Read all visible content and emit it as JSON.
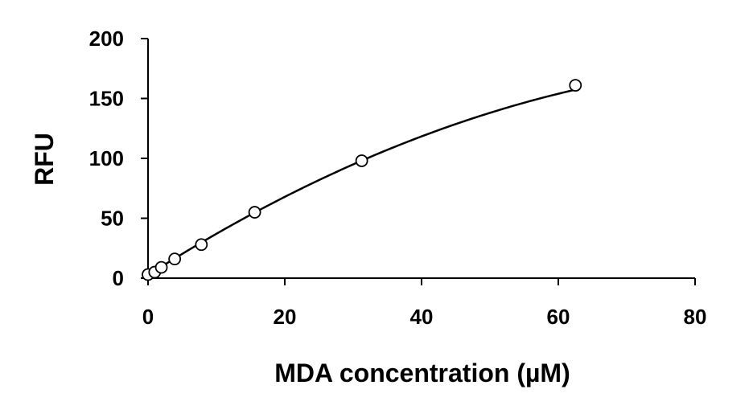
{
  "chart_data": {
    "type": "scatter",
    "title": "",
    "xlabel": "MDA concentration (µM)",
    "ylabel": "RFU",
    "xlim": [
      0,
      80
    ],
    "ylim": [
      0,
      200
    ],
    "xticks": [
      "0",
      "20",
      "40",
      "60",
      "80"
    ],
    "yticks": [
      "0",
      "50",
      "100",
      "150",
      "200"
    ],
    "grid": false,
    "legend": "none",
    "colors": {
      "axis": "#000000",
      "marker": "#000000",
      "fit": "#000000"
    },
    "series": [
      {
        "marker": "open-circle",
        "points": [
          {
            "x": 0,
            "y": 3
          },
          {
            "x": 0.98,
            "y": 5
          },
          {
            "x": 1.95,
            "y": 9
          },
          {
            "x": 3.9,
            "y": 16
          },
          {
            "x": 7.8,
            "y": 28
          },
          {
            "x": 15.6,
            "y": 55
          },
          {
            "x": 31.25,
            "y": 98
          },
          {
            "x": 62.5,
            "y": 161
          }
        ],
        "fit": {
          "type": "polynomial",
          "coefficients": [
            2.5,
            3.64,
            -0.0186
          ]
        }
      }
    ]
  }
}
